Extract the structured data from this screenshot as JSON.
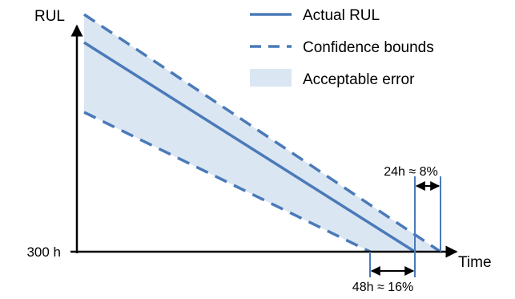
{
  "axes": {
    "y_label": "RUL",
    "x_label": "Time",
    "y_tick_label": "300 h"
  },
  "legend": {
    "actual": "Actual RUL",
    "bounds": "Confidence bounds",
    "area": "Acceptable error"
  },
  "annotations": {
    "upper": "24h ≈ 8%",
    "lower": "48h ≈ 16%"
  },
  "colors": {
    "line": "#4a7ab8",
    "area": "#dbe6f3",
    "axis": "#000000"
  }
}
